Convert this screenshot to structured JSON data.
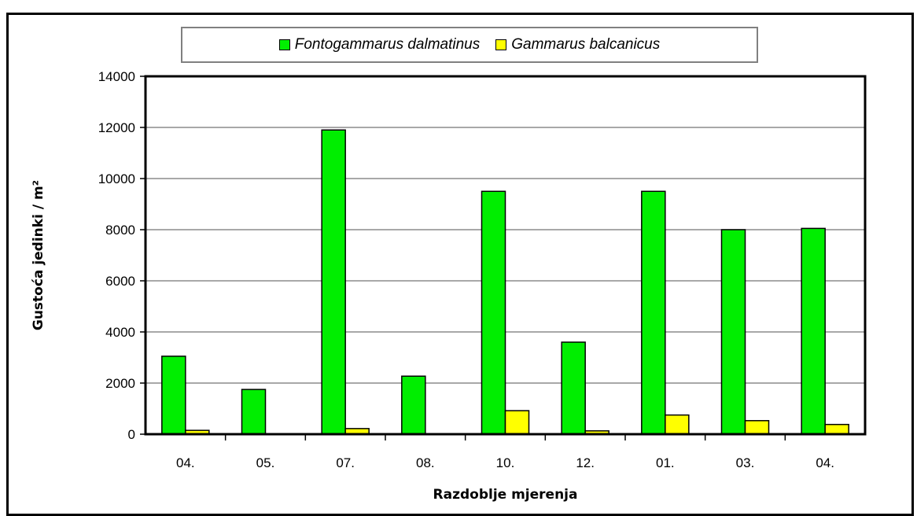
{
  "chart_data": {
    "type": "bar",
    "title": "",
    "xlabel": "Razdoblje mjerenja",
    "ylabel": "Gustoća jedinki / m²",
    "categories": [
      "04.",
      "05.",
      "07.",
      "08.",
      "10.",
      "12.",
      "01.",
      "03.",
      "04."
    ],
    "series": [
      {
        "name": "Fontogammarus dalmatinus",
        "color": "#00ee00",
        "values": [
          3050,
          1750,
          11900,
          2270,
          9500,
          3600,
          9500,
          8000,
          8050
        ]
      },
      {
        "name": "Gammarus balcanicus",
        "color": "#ffff00",
        "values": [
          150,
          0,
          220,
          0,
          920,
          130,
          750,
          530,
          380
        ]
      }
    ],
    "ylim": [
      0,
      14000
    ],
    "yticks": [
      0,
      2000,
      4000,
      6000,
      8000,
      10000,
      12000,
      14000
    ],
    "grid": true,
    "legend_position": "top"
  }
}
